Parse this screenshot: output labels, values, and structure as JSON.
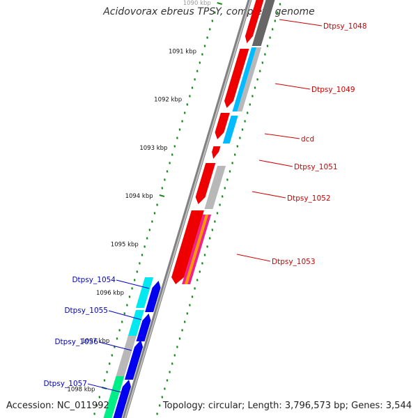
{
  "title": "Acidovorax ebreus TPSY, complete genome",
  "accession_text": "Accession: NC_011992",
  "summary_text": "Topology: circular; Length: 3,796,573 bp; Genes: 3,544",
  "colors": {
    "backbone": "#808080",
    "tick": "#1a8a1a",
    "right_label": "#cc0000",
    "left_label": "#0000cc",
    "red": "#ee0000",
    "dark_grey": "#666666",
    "grey": "#b8b8b8",
    "light_blue": "#00bbff",
    "cyan": "#00e8f0",
    "blue": "#0000ee",
    "magenta": "#ee2288",
    "orange": "#ff9900",
    "green": "#00ee88"
  },
  "kbp_labels": [
    "1090 kbp",
    "1091 kbp",
    "1092 kbp",
    "1093 kbp",
    "1094 kbp",
    "1095 kbp",
    "1096 kbp",
    "1097 kbp",
    "1098 kbp"
  ],
  "gene_labels_right": [
    "Dtpsy_1048",
    "Dtpsy_1049",
    "dcd",
    "Dtpsy_1051",
    "Dtpsy_1052",
    "Dtpsy_1053"
  ],
  "gene_labels_left": [
    "Dtpsy_1054",
    "Dtpsy_1055",
    "Dtpsy_1056",
    "Dtpsy_1057"
  ]
}
